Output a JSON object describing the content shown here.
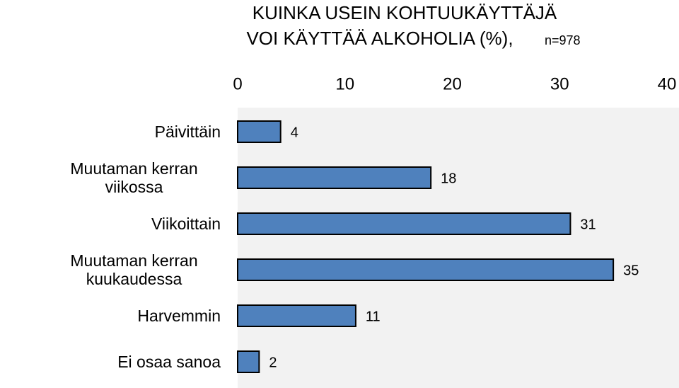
{
  "chart_data": {
    "type": "hbar",
    "title": [
      "KUINKA USEIN KOHTUUKÄYTTÄJÄ",
      "VOI KÄYTTÄÄ ALKOHOLIA (%),"
    ],
    "subtitle": "n=978",
    "categories": [
      "Päivittäin",
      "Muutaman kerran viikossa",
      "Viikoittain",
      "Muutaman kerran kuukaudessa",
      "Harvemmin",
      "Ei osaa sanoa"
    ],
    "values": [
      4,
      18,
      31,
      35,
      11,
      2
    ],
    "color": "#4f81bd",
    "xlim": [
      0,
      40
    ],
    "xticks": [
      0,
      10,
      20,
      30,
      40
    ],
    "background": "#f2f2f2"
  }
}
